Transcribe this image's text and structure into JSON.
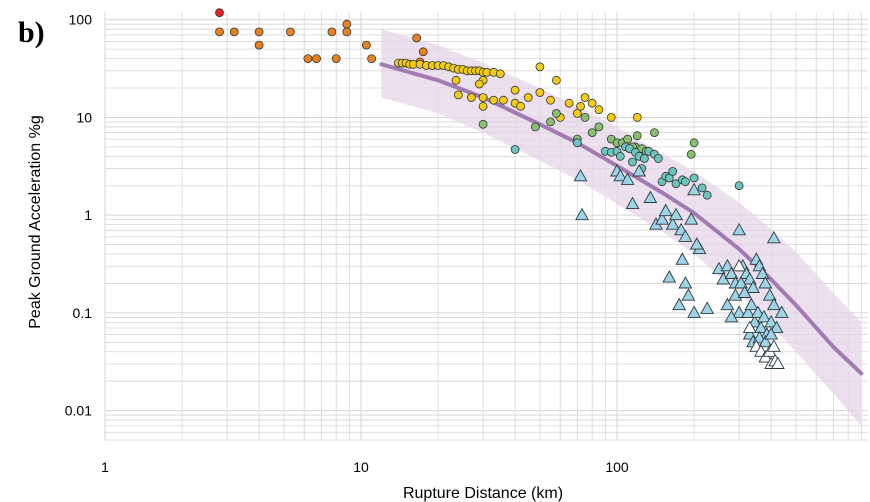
{
  "chart_data": {
    "type": "scatter",
    "panel_label": "b)",
    "xlabel": "Rupture Distance (km)",
    "ylabel": "Peak Ground Acceleration %g",
    "x_scale": "log",
    "y_scale": "log",
    "xlim": [
      1,
      1000
    ],
    "ylim": [
      0.005,
      120
    ],
    "x_ticks": [
      {
        "value": 1,
        "label": "1"
      },
      {
        "value": 10,
        "label": "10"
      },
      {
        "value": 100,
        "label": "100"
      }
    ],
    "y_ticks": [
      {
        "value": 100,
        "label": "100"
      },
      {
        "value": 10,
        "label": "10"
      },
      {
        "value": 1,
        "label": "1"
      },
      {
        "value": 0.1,
        "label": "0.1"
      },
      {
        "value": 0.01,
        "label": "0.01"
      }
    ],
    "grid": true,
    "colors": {
      "red": "#e8202a",
      "orange": "#e8821e",
      "yellow": "#f2cb16",
      "green": "#86c070",
      "teal": "#6cc4bd",
      "blue": "#9ed4e6",
      "white": "#ffffff",
      "curve": "#a27bb2",
      "band": "#e6d6ea",
      "grid": "#d6d6d6"
    },
    "series": [
      {
        "marker": "circle",
        "color": "red",
        "points": [
          [
            2.8,
            118
          ]
        ]
      },
      {
        "marker": "circle",
        "color": "orange",
        "points": [
          [
            2.8,
            75
          ],
          [
            3.2,
            75
          ],
          [
            4,
            75
          ],
          [
            4,
            55
          ],
          [
            5.3,
            75
          ],
          [
            6.2,
            40
          ],
          [
            6.7,
            40
          ],
          [
            7.7,
            75
          ],
          [
            8,
            40
          ],
          [
            8.8,
            90
          ],
          [
            8.8,
            75
          ],
          [
            10.5,
            55
          ],
          [
            11,
            40
          ],
          [
            16.5,
            65
          ],
          [
            17.5,
            47
          ],
          [
            17,
            37
          ]
        ]
      },
      {
        "marker": "circle",
        "color": "yellow",
        "points": [
          [
            14,
            36
          ],
          [
            14.5,
            36
          ],
          [
            15,
            36
          ],
          [
            15.5,
            35
          ],
          [
            16,
            35
          ],
          [
            17,
            35
          ],
          [
            18,
            34
          ],
          [
            19,
            34
          ],
          [
            20,
            34
          ],
          [
            21,
            34
          ],
          [
            22,
            33
          ],
          [
            23,
            32
          ],
          [
            24,
            31
          ],
          [
            25,
            31
          ],
          [
            26,
            30
          ],
          [
            27,
            30
          ],
          [
            28,
            30
          ],
          [
            29,
            30
          ],
          [
            30,
            29
          ],
          [
            31,
            29
          ],
          [
            33,
            29
          ],
          [
            35,
            28
          ],
          [
            23.5,
            24
          ],
          [
            30,
            24
          ],
          [
            29,
            22
          ],
          [
            24,
            17
          ],
          [
            27,
            16
          ],
          [
            30,
            16
          ],
          [
            33,
            15
          ],
          [
            36,
            15
          ],
          [
            30,
            13
          ],
          [
            40,
            19
          ],
          [
            40,
            14
          ],
          [
            42,
            13
          ],
          [
            45,
            16
          ],
          [
            50,
            33
          ],
          [
            50,
            18
          ],
          [
            55,
            15
          ],
          [
            58,
            24
          ],
          [
            60,
            10
          ],
          [
            65,
            14
          ],
          [
            70,
            11
          ],
          [
            72,
            13
          ],
          [
            75,
            16
          ],
          [
            80,
            14
          ],
          [
            85,
            12
          ],
          [
            95,
            10
          ],
          [
            120,
            10
          ]
        ]
      },
      {
        "marker": "circle",
        "color": "green",
        "points": [
          [
            30,
            8.5
          ],
          [
            48,
            8
          ],
          [
            55,
            9
          ],
          [
            58,
            11
          ],
          [
            75,
            10
          ],
          [
            80,
            7
          ],
          [
            85,
            8
          ],
          [
            70,
            6
          ],
          [
            95,
            6
          ],
          [
            100,
            5.5
          ],
          [
            105,
            5.5
          ],
          [
            110,
            6
          ],
          [
            118,
            5
          ],
          [
            125,
            4.8
          ],
          [
            130,
            4.5
          ],
          [
            140,
            7
          ],
          [
            120,
            6.5
          ],
          [
            200,
            5.5
          ],
          [
            195,
            4.2
          ],
          [
            115,
            5
          ]
        ]
      },
      {
        "marker": "circle",
        "color": "teal",
        "points": [
          [
            40,
            4.7
          ],
          [
            70,
            5.5
          ],
          [
            90,
            4.5
          ],
          [
            95,
            4.4
          ],
          [
            100,
            4.5
          ],
          [
            103,
            4
          ],
          [
            108,
            5
          ],
          [
            112,
            4.8
          ],
          [
            115,
            3.5
          ],
          [
            118,
            4.4
          ],
          [
            122,
            4
          ],
          [
            128,
            3.8
          ],
          [
            133,
            4.5
          ],
          [
            140,
            4.2
          ],
          [
            145,
            3.8
          ],
          [
            150,
            2.2
          ],
          [
            155,
            2.5
          ],
          [
            160,
            2.4
          ],
          [
            165,
            2.8
          ],
          [
            170,
            2.1
          ],
          [
            180,
            2.3
          ],
          [
            185,
            2.2
          ],
          [
            200,
            2.4
          ],
          [
            215,
            1.9
          ],
          [
            225,
            1.6
          ],
          [
            125,
            3
          ],
          [
            300,
            2
          ]
        ]
      },
      {
        "marker": "triangle",
        "color": "blue",
        "points": [
          [
            72,
            2.5
          ],
          [
            73,
            1
          ],
          [
            100,
            2.8
          ],
          [
            103,
            2.5
          ],
          [
            110,
            2.3
          ],
          [
            115,
            1.3
          ],
          [
            122,
            2.8
          ],
          [
            135,
            1.5
          ],
          [
            142,
            0.8
          ],
          [
            150,
            0.9
          ],
          [
            155,
            1.1
          ],
          [
            165,
            0.8
          ],
          [
            170,
            1.0
          ],
          [
            178,
            0.7
          ],
          [
            185,
            0.6
          ],
          [
            195,
            0.9
          ],
          [
            200,
            1.8
          ],
          [
            210,
            0.45
          ],
          [
            205,
            0.5
          ],
          [
            180,
            0.35
          ],
          [
            160,
            0.23
          ],
          [
            175,
            0.12
          ],
          [
            185,
            0.2
          ],
          [
            200,
            0.1
          ],
          [
            190,
            0.15
          ],
          [
            225,
            0.11
          ],
          [
            250,
            0.28
          ],
          [
            260,
            0.22
          ],
          [
            270,
            0.3
          ],
          [
            280,
            0.25
          ],
          [
            290,
            0.2
          ],
          [
            300,
            0.7
          ],
          [
            300,
            0.1
          ],
          [
            290,
            0.15
          ],
          [
            310,
            0.3
          ],
          [
            320,
            0.25
          ],
          [
            330,
            0.22
          ],
          [
            340,
            0.18
          ],
          [
            350,
            0.35
          ],
          [
            360,
            0.3
          ],
          [
            370,
            0.25
          ],
          [
            380,
            0.2
          ],
          [
            395,
            0.15
          ],
          [
            305,
            0.2
          ],
          [
            315,
            0.16
          ],
          [
            325,
            0.1
          ],
          [
            335,
            0.12
          ],
          [
            345,
            0.08
          ],
          [
            355,
            0.1
          ],
          [
            365,
            0.07
          ],
          [
            375,
            0.09
          ],
          [
            385,
            0.06
          ],
          [
            400,
            0.08
          ],
          [
            410,
            0.12
          ],
          [
            420,
            0.07
          ],
          [
            330,
            0.06
          ],
          [
            340,
            0.05
          ],
          [
            360,
            0.055
          ],
          [
            380,
            0.05
          ],
          [
            400,
            0.06
          ],
          [
            440,
            0.1
          ],
          [
            410,
            0.58
          ],
          [
            270,
            0.12
          ],
          [
            280,
            0.09
          ]
        ]
      },
      {
        "marker": "triangle",
        "color": "white",
        "points": [
          [
            300,
            0.3
          ],
          [
            330,
            0.07
          ],
          [
            350,
            0.045
          ],
          [
            365,
            0.04
          ],
          [
            380,
            0.035
          ],
          [
            395,
            0.04
          ],
          [
            400,
            0.03
          ],
          [
            415,
            0.032
          ],
          [
            425,
            0.03
          ],
          [
            410,
            0.045
          ]
        ]
      }
    ],
    "median_curve": [
      [
        12,
        35
      ],
      [
        20,
        24
      ],
      [
        30,
        16
      ],
      [
        50,
        8.5
      ],
      [
        70,
        5.5
      ],
      [
        100,
        3.2
      ],
      [
        150,
        1.7
      ],
      [
        200,
        1.05
      ],
      [
        300,
        0.45
      ],
      [
        400,
        0.22
      ],
      [
        500,
        0.12
      ],
      [
        700,
        0.045
      ],
      [
        900,
        0.024
      ]
    ],
    "band_upper": [
      [
        12,
        80
      ],
      [
        20,
        55
      ],
      [
        30,
        36
      ],
      [
        50,
        20
      ],
      [
        70,
        13
      ],
      [
        100,
        8
      ],
      [
        150,
        4.3
      ],
      [
        200,
        2.8
      ],
      [
        300,
        1.35
      ],
      [
        400,
        0.72
      ],
      [
        500,
        0.42
      ],
      [
        700,
        0.16
      ],
      [
        900,
        0.08
      ]
    ],
    "band_lower": [
      [
        12,
        16
      ],
      [
        20,
        11
      ],
      [
        30,
        7
      ],
      [
        50,
        3.6
      ],
      [
        70,
        2.3
      ],
      [
        100,
        1.3
      ],
      [
        150,
        0.68
      ],
      [
        200,
        0.4
      ],
      [
        300,
        0.16
      ],
      [
        400,
        0.075
      ],
      [
        500,
        0.04
      ],
      [
        700,
        0.015
      ],
      [
        900,
        0.007
      ]
    ]
  }
}
